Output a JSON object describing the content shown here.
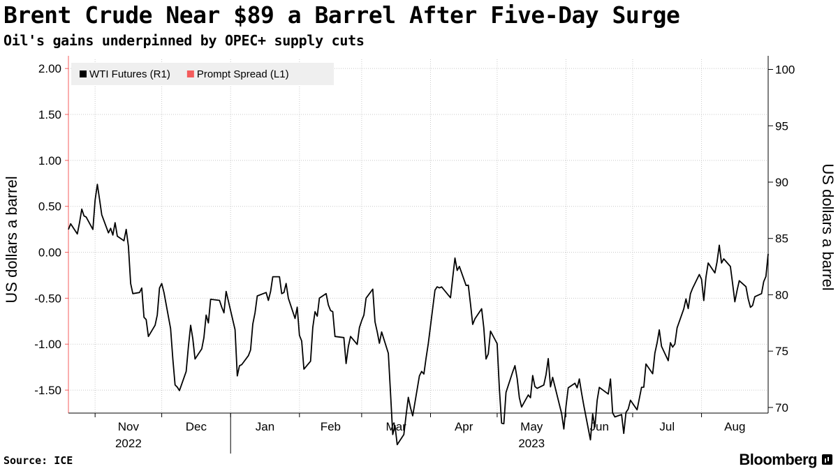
{
  "header": {
    "title": "Brent Crude Near $89 a Barrel After Five-Day Surge",
    "subtitle": "Oil's gains underpinned by OPEC+ supply cuts"
  },
  "footer": {
    "source": "Source: ICE",
    "brand": "Bloomberg"
  },
  "chart_data": {
    "type": "line",
    "legend_placement": "top-left",
    "grid": true,
    "left_axis": {
      "label": "US dollars a barrel",
      "range": [
        -1.75,
        2.1
      ],
      "ticks": [
        2.0,
        1.5,
        1.0,
        0.5,
        0.0,
        -0.5,
        -1.0,
        -1.5
      ],
      "tick_labels": [
        "2.00",
        "1.50",
        "1.00",
        "0.50",
        "0.00",
        "-0.50",
        "-1.00",
        "-1.50"
      ]
    },
    "right_axis": {
      "label": "US dollars a barrel",
      "range": [
        69.5,
        100.9
      ],
      "ticks": [
        100,
        95,
        90,
        85,
        80,
        75,
        70
      ],
      "tick_labels": [
        "100",
        "95",
        "90",
        "85",
        "80",
        "75",
        "70"
      ]
    },
    "x_axis": {
      "start": "2022-10-20",
      "end": "2023-08-31",
      "months": [
        {
          "label": "Nov",
          "start": "2022-11-01"
        },
        {
          "label": "Dec",
          "start": "2022-12-01"
        },
        {
          "label": "Jan",
          "start": "2023-01-01"
        },
        {
          "label": "Feb",
          "start": "2023-02-01"
        },
        {
          "label": "Mar",
          "start": "2023-03-01"
        },
        {
          "label": "Apr",
          "start": "2023-04-01"
        },
        {
          "label": "May",
          "start": "2023-05-01"
        },
        {
          "label": "Jun",
          "start": "2023-06-01"
        },
        {
          "label": "Jul",
          "start": "2023-07-01"
        },
        {
          "label": "Aug",
          "start": "2023-08-01"
        }
      ],
      "years": [
        {
          "label": "2022",
          "month_index": 0
        },
        {
          "label": "2023",
          "month_index": 6
        }
      ],
      "year_separators": [
        "2023-01-01"
      ]
    },
    "series": [
      {
        "name": "WTI Futures (R1)",
        "axis": "right",
        "color": "#000000",
        "points": [
          [
            "2022-10-20",
            85.8
          ],
          [
            "2022-10-21",
            86.3
          ],
          [
            "2022-10-24",
            85.4
          ],
          [
            "2022-10-25",
            86.4
          ],
          [
            "2022-10-26",
            87.6
          ],
          [
            "2022-10-27",
            87.0
          ],
          [
            "2022-10-28",
            86.9
          ],
          [
            "2022-10-31",
            85.8
          ],
          [
            "2022-11-01",
            88.4
          ],
          [
            "2022-11-02",
            89.8
          ],
          [
            "2022-11-03",
            88.5
          ],
          [
            "2022-11-04",
            87.1
          ],
          [
            "2022-11-07",
            85.5
          ],
          [
            "2022-11-08",
            85.9
          ],
          [
            "2022-11-09",
            85.3
          ],
          [
            "2022-11-10",
            86.4
          ],
          [
            "2022-11-11",
            85.2
          ],
          [
            "2022-11-14",
            84.8
          ],
          [
            "2022-11-15",
            85.8
          ],
          [
            "2022-11-16",
            84.3
          ],
          [
            "2022-11-17",
            81.0
          ],
          [
            "2022-11-18",
            80.1
          ],
          [
            "2022-11-21",
            80.2
          ],
          [
            "2022-11-22",
            80.6
          ],
          [
            "2022-11-23",
            78.0
          ],
          [
            "2022-11-24",
            77.8
          ],
          [
            "2022-11-25",
            76.3
          ],
          [
            "2022-11-28",
            77.3
          ],
          [
            "2022-11-29",
            78.2
          ],
          [
            "2022-11-30",
            80.6
          ],
          [
            "2022-12-01",
            81.0
          ],
          [
            "2022-12-02",
            80.2
          ],
          [
            "2022-12-05",
            77.0
          ],
          [
            "2022-12-06",
            74.3
          ],
          [
            "2022-12-07",
            72.0
          ],
          [
            "2022-12-08",
            71.8
          ],
          [
            "2022-12-09",
            71.5
          ],
          [
            "2022-12-12",
            73.2
          ],
          [
            "2022-12-13",
            75.4
          ],
          [
            "2022-12-14",
            77.3
          ],
          [
            "2022-12-15",
            76.1
          ],
          [
            "2022-12-16",
            74.3
          ],
          [
            "2022-12-19",
            75.2
          ],
          [
            "2022-12-20",
            76.2
          ],
          [
            "2022-12-21",
            78.2
          ],
          [
            "2022-12-22",
            77.5
          ],
          [
            "2022-12-23",
            79.6
          ],
          [
            "2022-12-27",
            79.5
          ],
          [
            "2022-12-28",
            78.9
          ],
          [
            "2022-12-29",
            78.4
          ],
          [
            "2022-12-30",
            80.3
          ],
          [
            "2023-01-03",
            76.9
          ],
          [
            "2023-01-04",
            72.8
          ],
          [
            "2023-01-05",
            73.7
          ],
          [
            "2023-01-06",
            73.8
          ],
          [
            "2023-01-09",
            74.6
          ],
          [
            "2023-01-10",
            75.1
          ],
          [
            "2023-01-11",
            77.4
          ],
          [
            "2023-01-12",
            78.4
          ],
          [
            "2023-01-13",
            79.9
          ],
          [
            "2023-01-17",
            80.2
          ],
          [
            "2023-01-18",
            79.5
          ],
          [
            "2023-01-19",
            80.3
          ],
          [
            "2023-01-20",
            81.6
          ],
          [
            "2023-01-23",
            81.6
          ],
          [
            "2023-01-24",
            80.1
          ],
          [
            "2023-01-25",
            80.2
          ],
          [
            "2023-01-26",
            81.0
          ],
          [
            "2023-01-27",
            79.7
          ],
          [
            "2023-01-30",
            77.9
          ],
          [
            "2023-01-31",
            78.9
          ],
          [
            "2023-02-01",
            76.4
          ],
          [
            "2023-02-02",
            75.9
          ],
          [
            "2023-02-03",
            73.4
          ],
          [
            "2023-02-06",
            74.1
          ],
          [
            "2023-02-07",
            77.1
          ],
          [
            "2023-02-08",
            78.5
          ],
          [
            "2023-02-09",
            78.1
          ],
          [
            "2023-02-10",
            79.7
          ],
          [
            "2023-02-13",
            80.1
          ],
          [
            "2023-02-14",
            79.1
          ],
          [
            "2023-02-15",
            78.6
          ],
          [
            "2023-02-16",
            78.5
          ],
          [
            "2023-02-17",
            76.3
          ],
          [
            "2023-02-21",
            76.2
          ],
          [
            "2023-02-22",
            73.9
          ],
          [
            "2023-02-23",
            75.4
          ],
          [
            "2023-02-24",
            76.3
          ],
          [
            "2023-02-27",
            75.6
          ],
          [
            "2023-02-28",
            77.1
          ],
          [
            "2023-03-01",
            77.7
          ],
          [
            "2023-03-02",
            78.2
          ],
          [
            "2023-03-03",
            79.7
          ],
          [
            "2023-03-06",
            80.5
          ],
          [
            "2023-03-07",
            77.6
          ],
          [
            "2023-03-08",
            76.7
          ],
          [
            "2023-03-09",
            75.7
          ],
          [
            "2023-03-10",
            76.7
          ],
          [
            "2023-03-13",
            74.8
          ],
          [
            "2023-03-14",
            71.3
          ],
          [
            "2023-03-15",
            67.6
          ],
          [
            "2023-03-16",
            68.4
          ],
          [
            "2023-03-17",
            66.7
          ],
          [
            "2023-03-20",
            67.6
          ],
          [
            "2023-03-21",
            69.3
          ],
          [
            "2023-03-22",
            70.9
          ],
          [
            "2023-03-23",
            69.96
          ],
          [
            "2023-03-24",
            69.26
          ],
          [
            "2023-03-27",
            72.81
          ],
          [
            "2023-03-28",
            73.2
          ],
          [
            "2023-03-29",
            72.97
          ],
          [
            "2023-03-30",
            74.37
          ],
          [
            "2023-03-31",
            75.67
          ],
          [
            "2023-04-03",
            80.42
          ],
          [
            "2023-04-04",
            80.71
          ],
          [
            "2023-04-05",
            80.61
          ],
          [
            "2023-04-06",
            80.7
          ],
          [
            "2023-04-10",
            79.74
          ],
          [
            "2023-04-11",
            81.53
          ],
          [
            "2023-04-12",
            83.26
          ],
          [
            "2023-04-13",
            82.16
          ],
          [
            "2023-04-14",
            82.52
          ],
          [
            "2023-04-17",
            80.83
          ],
          [
            "2023-04-18",
            80.86
          ],
          [
            "2023-04-19",
            79.16
          ],
          [
            "2023-04-20",
            77.37
          ],
          [
            "2023-04-21",
            77.87
          ],
          [
            "2023-04-24",
            78.76
          ],
          [
            "2023-04-25",
            77.07
          ],
          [
            "2023-04-26",
            74.3
          ],
          [
            "2023-04-27",
            74.76
          ],
          [
            "2023-04-28",
            76.78
          ],
          [
            "2023-05-01",
            75.66
          ],
          [
            "2023-05-02",
            71.66
          ],
          [
            "2023-05-03",
            68.6
          ],
          [
            "2023-05-04",
            68.56
          ],
          [
            "2023-05-05",
            71.34
          ],
          [
            "2023-05-08",
            73.16
          ],
          [
            "2023-05-09",
            73.71
          ],
          [
            "2023-05-10",
            72.56
          ],
          [
            "2023-05-11",
            70.87
          ],
          [
            "2023-05-12",
            70.04
          ],
          [
            "2023-05-15",
            71.11
          ],
          [
            "2023-05-16",
            70.86
          ],
          [
            "2023-05-17",
            72.83
          ],
          [
            "2023-05-18",
            71.86
          ],
          [
            "2023-05-19",
            71.69
          ],
          [
            "2023-05-22",
            71.99
          ],
          [
            "2023-05-23",
            72.91
          ],
          [
            "2023-05-24",
            74.34
          ],
          [
            "2023-05-25",
            71.83
          ],
          [
            "2023-05-26",
            72.67
          ],
          [
            "2023-05-30",
            69.46
          ],
          [
            "2023-05-31",
            68.09
          ],
          [
            "2023-06-01",
            70.1
          ],
          [
            "2023-06-02",
            71.74
          ],
          [
            "2023-06-05",
            72.15
          ],
          [
            "2023-06-06",
            71.74
          ],
          [
            "2023-06-07",
            72.53
          ],
          [
            "2023-06-08",
            71.29
          ],
          [
            "2023-06-09",
            70.17
          ],
          [
            "2023-06-12",
            67.12
          ],
          [
            "2023-06-13",
            69.42
          ],
          [
            "2023-06-14",
            68.27
          ],
          [
            "2023-06-15",
            70.62
          ],
          [
            "2023-06-16",
            71.78
          ],
          [
            "2023-06-20",
            71.19
          ],
          [
            "2023-06-21",
            72.53
          ],
          [
            "2023-06-22",
            69.51
          ],
          [
            "2023-06-23",
            69.16
          ],
          [
            "2023-06-26",
            69.37
          ],
          [
            "2023-06-27",
            67.7
          ],
          [
            "2023-06-28",
            69.56
          ],
          [
            "2023-06-29",
            69.86
          ],
          [
            "2023-06-30",
            70.64
          ],
          [
            "2023-07-03",
            69.79
          ],
          [
            "2023-07-05",
            71.79
          ],
          [
            "2023-07-06",
            71.8
          ],
          [
            "2023-07-07",
            73.86
          ],
          [
            "2023-07-10",
            72.99
          ],
          [
            "2023-07-11",
            74.83
          ],
          [
            "2023-07-12",
            75.75
          ],
          [
            "2023-07-13",
            76.89
          ],
          [
            "2023-07-14",
            75.42
          ],
          [
            "2023-07-17",
            74.15
          ],
          [
            "2023-07-18",
            75.75
          ],
          [
            "2023-07-19",
            75.35
          ],
          [
            "2023-07-20",
            75.63
          ],
          [
            "2023-07-21",
            77.07
          ],
          [
            "2023-07-24",
            78.74
          ],
          [
            "2023-07-25",
            79.63
          ],
          [
            "2023-07-26",
            78.78
          ],
          [
            "2023-07-27",
            80.09
          ],
          [
            "2023-07-28",
            80.58
          ],
          [
            "2023-07-31",
            81.8
          ],
          [
            "2023-08-01",
            81.37
          ],
          [
            "2023-08-02",
            79.49
          ],
          [
            "2023-08-03",
            81.55
          ],
          [
            "2023-08-04",
            82.82
          ],
          [
            "2023-08-07",
            81.94
          ],
          [
            "2023-08-08",
            82.92
          ],
          [
            "2023-08-09",
            84.4
          ],
          [
            "2023-08-10",
            82.82
          ],
          [
            "2023-08-11",
            83.19
          ],
          [
            "2023-08-14",
            82.51
          ],
          [
            "2023-08-15",
            80.99
          ],
          [
            "2023-08-16",
            79.38
          ],
          [
            "2023-08-17",
            80.39
          ],
          [
            "2023-08-18",
            81.25
          ],
          [
            "2023-08-21",
            80.72
          ],
          [
            "2023-08-22",
            79.64
          ],
          [
            "2023-08-23",
            78.89
          ],
          [
            "2023-08-24",
            79.05
          ],
          [
            "2023-08-25",
            79.83
          ],
          [
            "2023-08-28",
            80.1
          ],
          [
            "2023-08-29",
            81.16
          ],
          [
            "2023-08-30",
            81.63
          ],
          [
            "2023-08-31",
            83.63
          ]
        ]
      },
      {
        "name": "Prompt Spread (L1)",
        "axis": "left",
        "color": "#f45c5c",
        "points": []
      }
    ]
  }
}
